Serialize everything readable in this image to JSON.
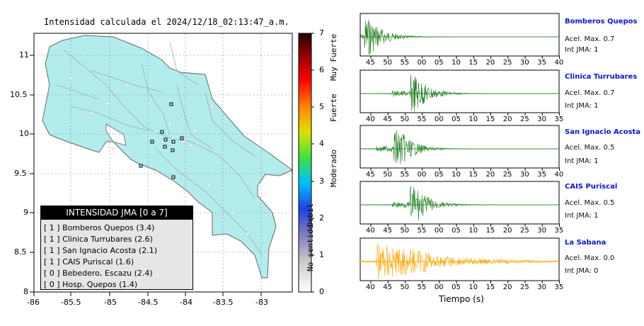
{
  "map": {
    "title": "Intensidad calculada el 2024/12/18_02:13:47_a.m.",
    "lon_ticks": [
      "-86",
      "-85.5",
      "-85",
      "-84.5",
      "-84",
      "-83.5",
      "-83"
    ],
    "lat_ticks": [
      "11",
      "10.5",
      "10",
      "9.5",
      "9",
      "8.5",
      "8"
    ],
    "land_color": "#b3ecec",
    "water_color": "#ffffff"
  },
  "legend": {
    "title": "INTENSIDAD JMA [0 a 7]",
    "rows": [
      "[ 1 ]  Bomberos Quepos (3.4)",
      "[ 1 ]  Clinica Turrubares (2.6)",
      "[ 1 ]  San Ignacio Acosta (2.1)",
      "[ 1 ]  CAIS Puriscal (1.6)",
      "[ 0 ]  Bebedero, Escazu (2.4)",
      "[ 0 ]  Hosp. Quepos (1.4)"
    ]
  },
  "colorbar": {
    "ticks": [
      "0",
      "1",
      "2",
      "3",
      "4",
      "5",
      "6",
      "7"
    ],
    "categories": [
      "No sentido",
      "Debil",
      "Moderado",
      "Fuerte",
      "Muy Fuerte"
    ]
  },
  "stations": [
    {
      "name": "Bomberos Quepos",
      "accel": "Acel. Max. 0.7",
      "jma": "Int JMA: 1",
      "ticks": [
        "45",
        "50",
        "55",
        "00",
        "05",
        "10",
        "15",
        "20",
        "25",
        "30",
        "35",
        "40"
      ],
      "color": "#1a7a1a"
    },
    {
      "name": "Clinica Turrubares",
      "accel": "Acel. Max. 0.7",
      "jma": "Int JMA: 1",
      "ticks": [
        "40",
        "45",
        "50",
        "55",
        "00",
        "05",
        "10",
        "15",
        "20",
        "25",
        "30",
        "35"
      ],
      "color": "#1a7a1a"
    },
    {
      "name": "San Ignacio Acosta",
      "accel": "Acel. Max. 0.5",
      "jma": "Int JMA: 1",
      "ticks": [
        "45",
        "50",
        "55",
        "00",
        "05",
        "10",
        "15",
        "20",
        "25",
        "30",
        "35",
        "40"
      ],
      "color": "#1a7a1a"
    },
    {
      "name": "CAIS Puriscal",
      "accel": "Acel. Max. 0.5",
      "jma": "Int JMA: 1",
      "ticks": [
        "40",
        "45",
        "50",
        "55",
        "00",
        "05",
        "10",
        "15",
        "20",
        "25",
        "30",
        "35"
      ],
      "color": "#1a7a1a"
    },
    {
      "name": "La Sabana",
      "accel": "Acel. Max. 0.0",
      "jma": "Int JMA: 0",
      "ticks": [
        "40",
        "45",
        "50",
        "55",
        "00",
        "05",
        "10",
        "15",
        "20",
        "25",
        "30",
        "35"
      ],
      "color": "#ffa500"
    }
  ],
  "xlabel": "Tiempo (s)",
  "chart_data": [
    {
      "type": "heatmap",
      "title": "Intensidad calculada el 2024/12/18_02:13:47_a.m.",
      "xlabel": "",
      "ylabel": "",
      "xlim": [
        -86,
        -82.6
      ],
      "ylim": [
        8,
        11.3
      ],
      "colorbar_range": [
        0,
        7
      ],
      "station_intensities": [
        {
          "name": "Bomberos Quepos",
          "jma": 1,
          "value": 3.4
        },
        {
          "name": "Clinica Turrubares",
          "jma": 1,
          "value": 2.6
        },
        {
          "name": "San Ignacio Acosta",
          "jma": 1,
          "value": 2.1
        },
        {
          "name": "CAIS Puriscal",
          "jma": 1,
          "value": 1.6
        },
        {
          "name": "Bebedero, Escazu",
          "jma": 0,
          "value": 2.4
        },
        {
          "name": "Hosp. Quepos",
          "jma": 0,
          "value": 1.4
        }
      ]
    },
    {
      "type": "line",
      "xlabel": "Tiempo (s)",
      "series": [
        {
          "name": "Bomberos Quepos",
          "peak": 0.7
        },
        {
          "name": "Clinica Turrubares",
          "peak": 0.7
        },
        {
          "name": "San Ignacio Acosta",
          "peak": 0.5
        },
        {
          "name": "CAIS Puriscal",
          "peak": 0.5
        },
        {
          "name": "La Sabana",
          "peak": 0.0
        }
      ]
    }
  ]
}
